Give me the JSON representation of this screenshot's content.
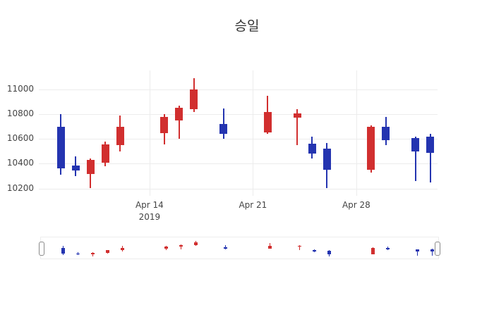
{
  "title": "승일",
  "colors": {
    "up": "#d12f2f",
    "down": "#2434b0",
    "grid": "#ececec",
    "text": "#444444",
    "title_text": "#333333"
  },
  "chart_data": {
    "type": "candlestick",
    "title": "승일",
    "xlabel": "",
    "ylabel": "",
    "legend": "none",
    "grid": true,
    "x_ticks": [
      {
        "date": "2019-04-14",
        "label": "Apr 14",
        "sublabel": "2019"
      },
      {
        "date": "2019-04-21",
        "label": "Apr 21",
        "sublabel": ""
      },
      {
        "date": "2019-04-28",
        "label": "Apr 28",
        "sublabel": ""
      }
    ],
    "y_ticks": [
      10200,
      10400,
      10600,
      10800,
      11000
    ],
    "x_range": [
      "2019-04-06",
      "2019-05-03"
    ],
    "y_range": [
      10140,
      11155
    ],
    "candles": [
      {
        "date": "2019-04-08",
        "open": 10700,
        "high": 10800,
        "low": 10310,
        "close": 10360
      },
      {
        "date": "2019-04-09",
        "open": 10385,
        "high": 10460,
        "low": 10300,
        "close": 10345
      },
      {
        "date": "2019-04-10",
        "open": 10315,
        "high": 10440,
        "low": 10205,
        "close": 10430
      },
      {
        "date": "2019-04-11",
        "open": 10405,
        "high": 10580,
        "low": 10380,
        "close": 10555
      },
      {
        "date": "2019-04-12",
        "open": 10550,
        "high": 10790,
        "low": 10500,
        "close": 10700
      },
      {
        "date": "2019-04-15",
        "open": 10650,
        "high": 10800,
        "low": 10555,
        "close": 10780
      },
      {
        "date": "2019-04-16",
        "open": 10750,
        "high": 10870,
        "low": 10605,
        "close": 10855
      },
      {
        "date": "2019-04-17",
        "open": 10840,
        "high": 11095,
        "low": 10820,
        "close": 11000
      },
      {
        "date": "2019-04-19",
        "open": 10720,
        "high": 10850,
        "low": 10600,
        "close": 10640
      },
      {
        "date": "2019-04-22",
        "open": 10650,
        "high": 10950,
        "low": 10640,
        "close": 10820
      },
      {
        "date": "2019-04-24",
        "open": 10775,
        "high": 10840,
        "low": 10550,
        "close": 10805
      },
      {
        "date": "2019-04-25",
        "open": 10560,
        "high": 10620,
        "low": 10440,
        "close": 10480
      },
      {
        "date": "2019-04-26",
        "open": 10520,
        "high": 10570,
        "low": 10205,
        "close": 10350
      },
      {
        "date": "2019-04-29",
        "open": 10350,
        "high": 10710,
        "low": 10330,
        "close": 10700
      },
      {
        "date": "2019-04-30",
        "open": 10700,
        "high": 10780,
        "low": 10550,
        "close": 10590
      },
      {
        "date": "2019-05-02",
        "open": 10610,
        "high": 10620,
        "low": 10260,
        "close": 10500
      },
      {
        "date": "2019-05-03",
        "open": 10620,
        "high": 10640,
        "low": 10250,
        "close": 10490
      }
    ]
  },
  "range_slider": {
    "visible": true
  }
}
